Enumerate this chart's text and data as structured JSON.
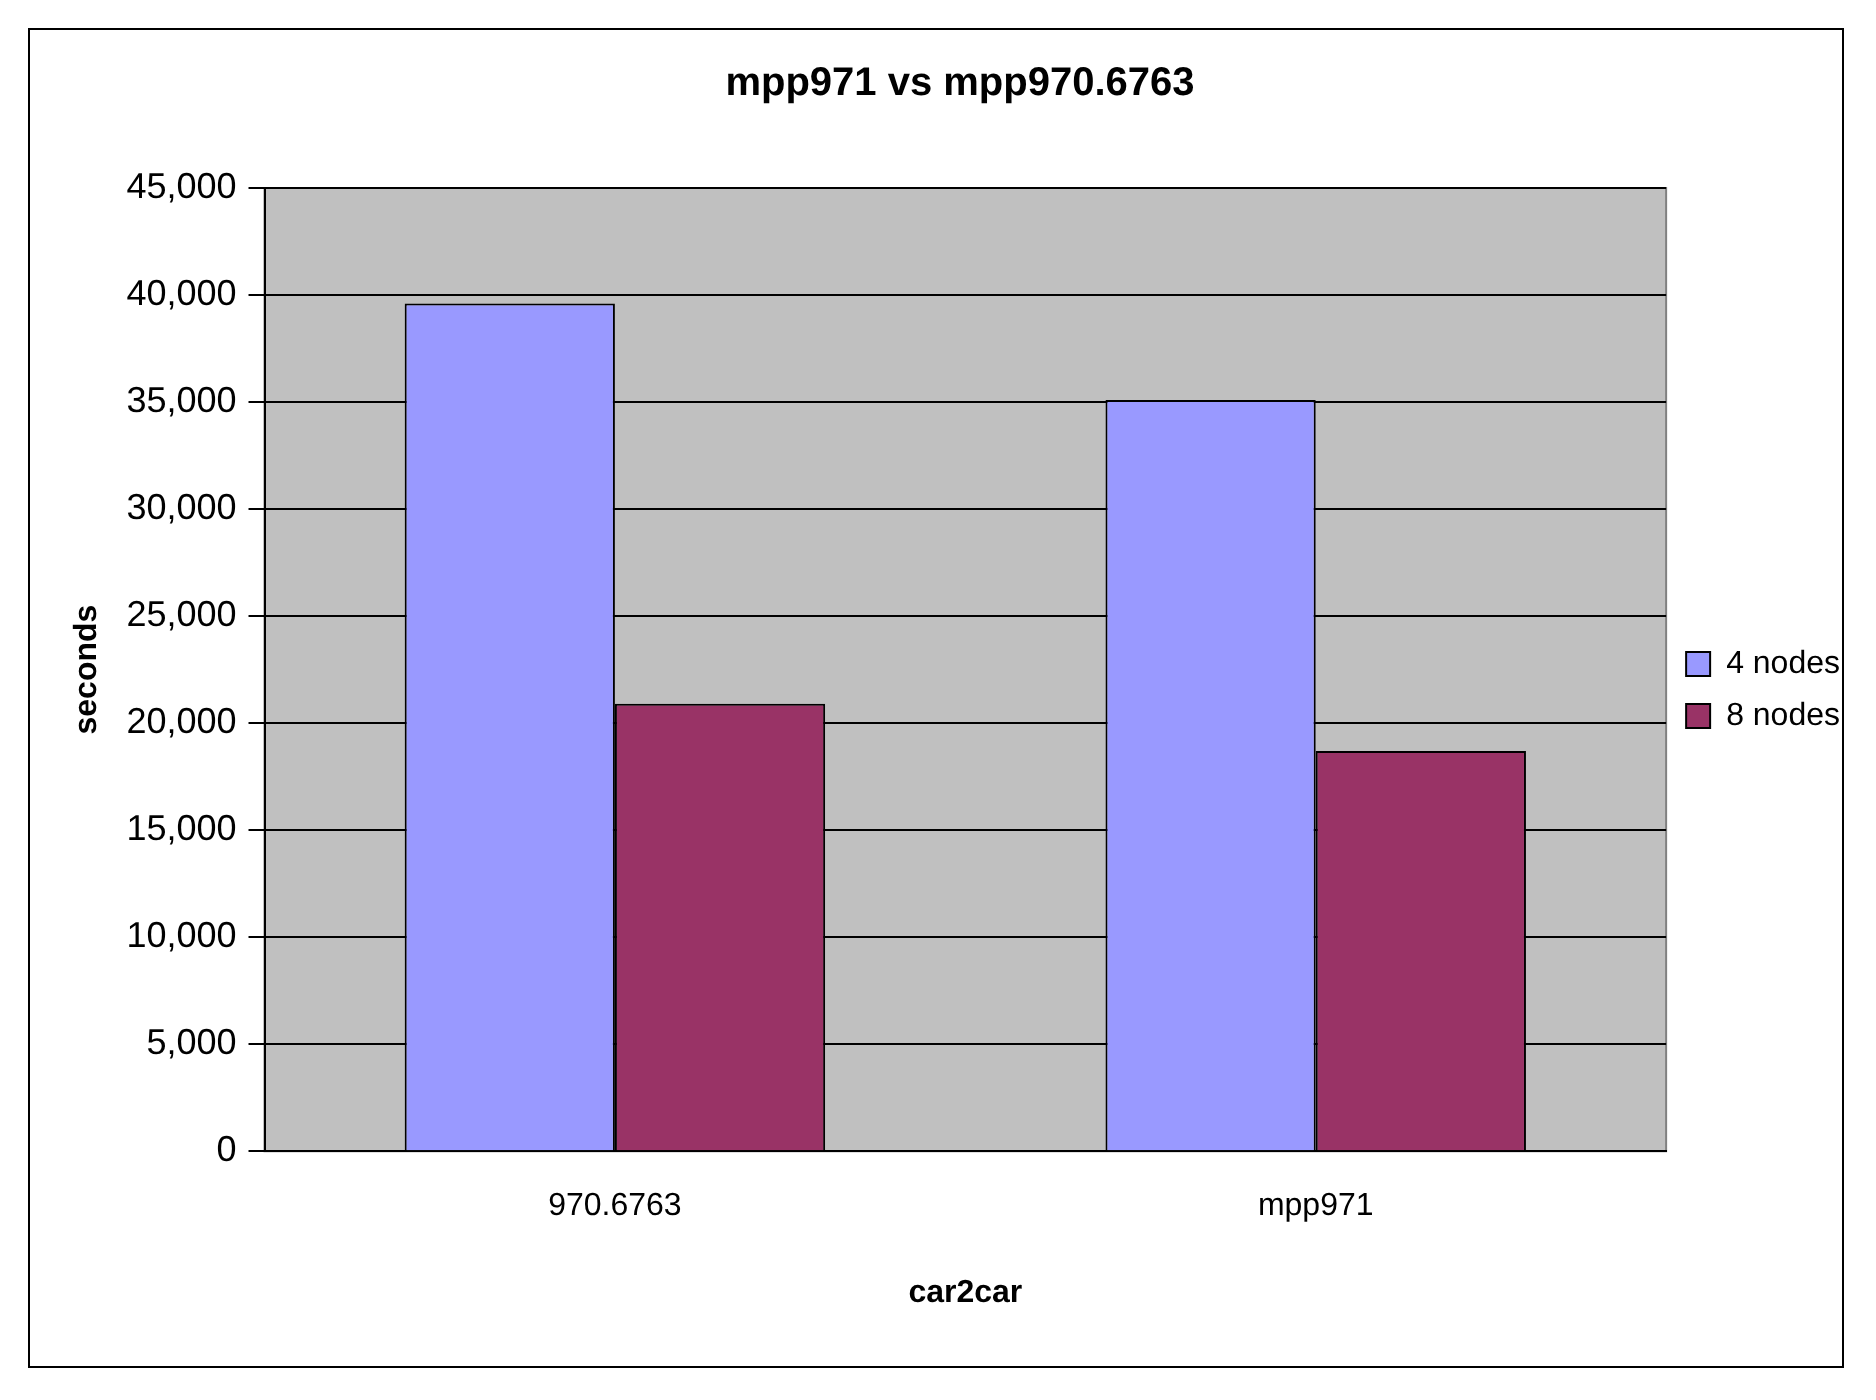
{
  "chart_data": {
    "type": "bar",
    "title": "mpp971 vs mpp970.6763",
    "xlabel": "car2car",
    "ylabel": "seconds",
    "categories": [
      "970.6763",
      "mpp971"
    ],
    "series": [
      {
        "name": "4 nodes",
        "color": "#9999ff",
        "values": [
          39600,
          35100
        ]
      },
      {
        "name": "8 nodes",
        "color": "#993366",
        "values": [
          20900,
          18700
        ]
      }
    ],
    "ylim": [
      0,
      45000
    ],
    "yticks": [
      {
        "value": 0,
        "label": "0"
      },
      {
        "value": 5000,
        "label": "5,000"
      },
      {
        "value": 10000,
        "label": "10,000"
      },
      {
        "value": 15000,
        "label": "15,000"
      },
      {
        "value": 20000,
        "label": "20,000"
      },
      {
        "value": 25000,
        "label": "25,000"
      },
      {
        "value": 30000,
        "label": "30,000"
      },
      {
        "value": 35000,
        "label": "35,000"
      },
      {
        "value": 40000,
        "label": "40,000"
      },
      {
        "value": 45000,
        "label": "45,000"
      }
    ],
    "grid": "y",
    "legend": "right"
  }
}
